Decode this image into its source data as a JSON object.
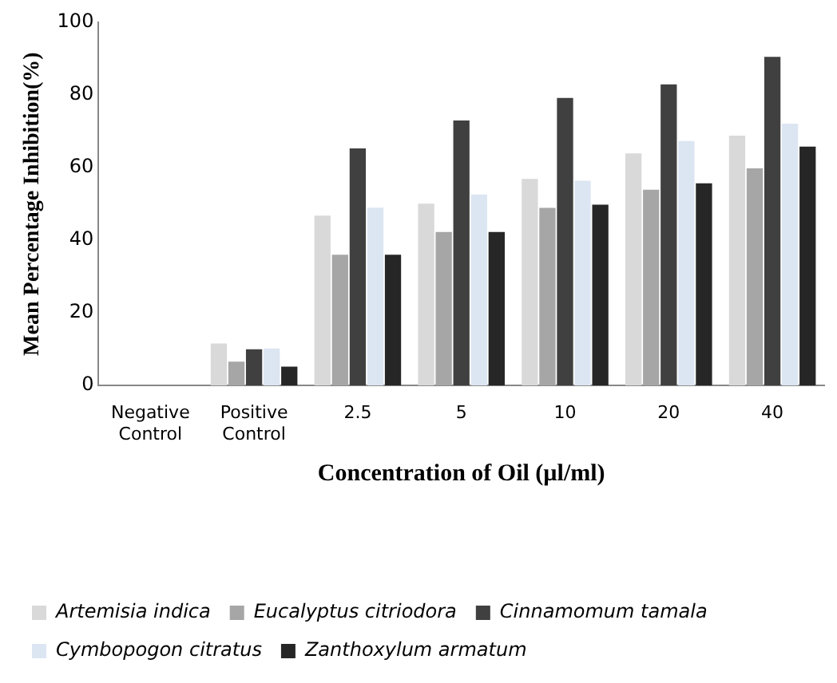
{
  "chart_data": {
    "type": "bar",
    "xlabel": "Concentration of Oil (µl/ml)",
    "ylabel": "Mean Percentage Inhibition(%)",
    "categories": [
      "Negative Control",
      "Positive Control",
      "2.5",
      "5",
      "10",
      "20",
      "40"
    ],
    "series": [
      {
        "name": "Artemisia indica",
        "color": "#d9d9d9",
        "values": [
          0,
          11.6,
          46.8,
          50.1,
          56.9,
          63.9,
          68.8
        ]
      },
      {
        "name": "Eucalyptus citriodora",
        "color": "#a6a6a6",
        "values": [
          0,
          6.6,
          36,
          42.3,
          48.9,
          53.9,
          59.8
        ]
      },
      {
        "name": "Cinnamomum tamala",
        "color": "#404040",
        "values": [
          0,
          10,
          65.3,
          73,
          79.2,
          82.9,
          90.5
        ]
      },
      {
        "name": "Cymbopogon citratus",
        "color": "#dce6f2",
        "values": [
          0,
          10.2,
          49,
          52.6,
          56.4,
          67.3,
          72.1
        ]
      },
      {
        "name": "Zanthoxylum armatum",
        "color": "#262626",
        "values": [
          0,
          5.2,
          36,
          42.3,
          49.8,
          55.7,
          65.8
        ]
      }
    ],
    "ylim": [
      0,
      100
    ],
    "yticks": [
      0,
      20,
      40,
      60,
      80,
      100
    ],
    "grid": false,
    "legend": "bottom"
  }
}
